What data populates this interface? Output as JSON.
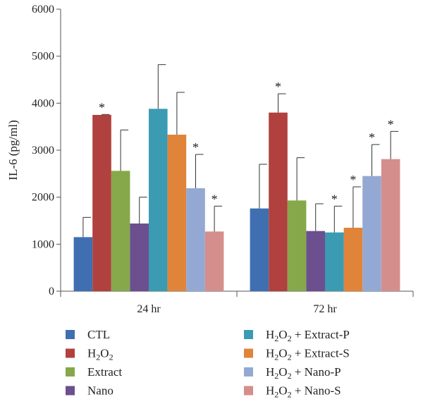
{
  "chart_data": {
    "type": "bar",
    "title": "",
    "xlabel": "",
    "ylabel": "IL-6 (pg/ml)",
    "ylim": [
      0,
      6000
    ],
    "yticks": [
      0,
      1000,
      2000,
      3000,
      4000,
      5000,
      6000
    ],
    "grid": false,
    "legend_position": "bottom",
    "categories": [
      "24 hr",
      "72 hr"
    ],
    "series": [
      {
        "name": "CTL",
        "name_main": "CTL",
        "color": "#3f6fb0",
        "values": [
          1150,
          1760
        ],
        "errors": [
          420,
          940
        ],
        "significant": [
          false,
          false
        ]
      },
      {
        "name": "H2O2",
        "name_main": "H",
        "name_sub": "2",
        "name_mid": "O",
        "name_sub2": "2",
        "name_tail": "",
        "color": "#b0413e",
        "values": [
          3750,
          3800
        ],
        "errors": [
          10,
          400
        ],
        "significant": [
          true,
          true
        ]
      },
      {
        "name": "Extract",
        "name_main": "Extract",
        "color": "#86a84a",
        "values": [
          2560,
          1930
        ],
        "errors": [
          870,
          910
        ],
        "significant": [
          false,
          false
        ]
      },
      {
        "name": "Nano",
        "name_main": "Nano",
        "color": "#6c4f8f",
        "values": [
          1440,
          1280
        ],
        "errors": [
          560,
          580
        ],
        "significant": [
          false,
          false
        ]
      },
      {
        "name": "H2O2 + Extract-P",
        "name_main": "H",
        "name_sub": "2",
        "name_mid": "O",
        "name_sub2": "2",
        "name_tail": " + Extract-P",
        "color": "#3a9bb3",
        "values": [
          3880,
          1250
        ],
        "errors": [
          940,
          560
        ],
        "significant": [
          false,
          true
        ]
      },
      {
        "name": "H2O2 + Extract-S",
        "name_main": "H",
        "name_sub": "2",
        "name_mid": "O",
        "name_sub2": "2",
        "name_tail": " + Extract-S",
        "color": "#e0843a",
        "values": [
          3330,
          1350
        ],
        "errors": [
          900,
          870
        ],
        "significant": [
          false,
          true
        ]
      },
      {
        "name": "H2O2 + Nano-P",
        "name_main": "H",
        "name_sub": "2",
        "name_mid": "O",
        "name_sub2": "2",
        "name_tail": " + Nano-P",
        "color": "#93a9d3",
        "values": [
          2190,
          2450
        ],
        "errors": [
          720,
          670
        ],
        "significant": [
          true,
          true
        ]
      },
      {
        "name": "H2O2 + Nano-S",
        "name_main": "H",
        "name_sub": "2",
        "name_mid": "O",
        "name_sub2": "2",
        "name_tail": " + Nano-S",
        "color": "#d48e8c",
        "values": [
          1270,
          2810
        ],
        "errors": [
          540,
          590
        ],
        "significant": [
          true,
          true
        ]
      }
    ],
    "significance_marker": "*"
  }
}
